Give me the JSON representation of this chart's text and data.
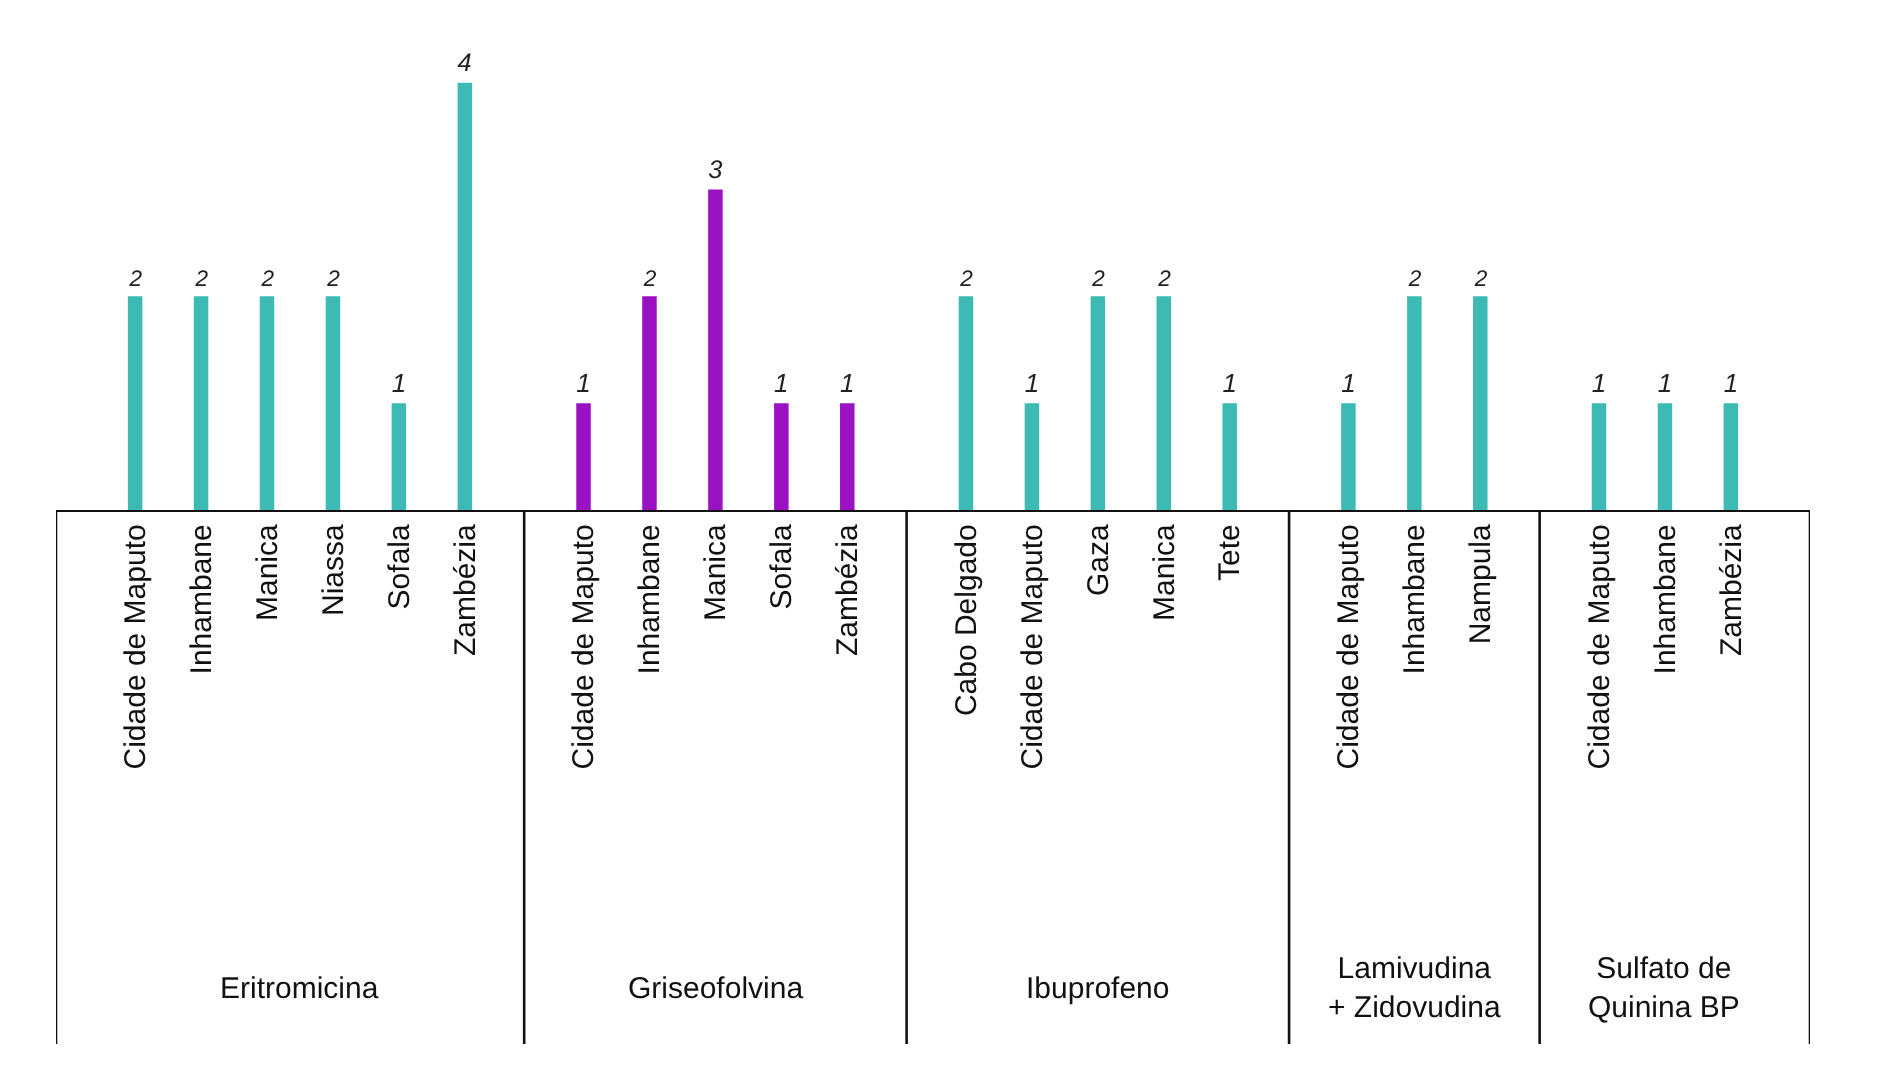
{
  "chart_data": {
    "type": "bar",
    "categories": [
      "Cidade de Maputo",
      "Inhambane",
      "Manica",
      "Niassa",
      "Sofala",
      "Zambézia",
      "Cidade de Maputo",
      "Inhambane",
      "Manica",
      "Sofala",
      "Zambézia",
      "Cabo Delgado",
      "Cidade de Maputo",
      "Gaza",
      "Manica",
      "Tete",
      "Cidade de Maputo",
      "Inhambane",
      "Nampula",
      "Cidade de Maputo",
      "Inhambane",
      "Zambézia"
    ],
    "series": [
      {
        "color": "#3dbab3",
        "values": [
          2,
          2,
          2,
          2,
          1,
          4,
          null,
          null,
          null,
          null,
          null,
          null,
          null,
          null,
          null,
          null,
          null,
          null,
          null,
          null,
          null,
          null
        ]
      },
      {
        "color": "#9b12c2",
        "values": [
          null,
          null,
          null,
          null,
          null,
          null,
          1,
          2,
          3,
          1,
          1,
          null,
          null,
          null,
          null,
          null,
          null,
          null,
          null,
          null,
          null,
          null
        ]
      },
      {
        "color": "#3dbab3",
        "values": [
          null,
          null,
          null,
          null,
          null,
          null,
          null,
          null,
          null,
          null,
          null,
          2,
          1,
          2,
          2,
          1,
          null,
          null,
          null,
          null,
          null,
          null
        ]
      },
      {
        "color": "#3dbab3",
        "values": [
          null,
          null,
          null,
          null,
          null,
          null,
          null,
          null,
          null,
          null,
          null,
          null,
          null,
          null,
          null,
          null,
          1,
          2,
          2,
          null,
          null,
          null
        ]
      },
      {
        "color": "#3dbab3",
        "values": [
          null,
          null,
          null,
          null,
          null,
          null,
          null,
          null,
          null,
          null,
          null,
          null,
          null,
          null,
          null,
          null,
          null,
          null,
          null,
          1,
          1,
          1
        ]
      }
    ],
    "annotations": [
      "Eritromicina",
      "Griseofolvina",
      "Ibuprofeno",
      "Lamivudina + Zidovudina",
      "Sulfato de Quinina BP"
    ],
    "data_labels": true,
    "legend": false,
    "grid": false
  }
}
